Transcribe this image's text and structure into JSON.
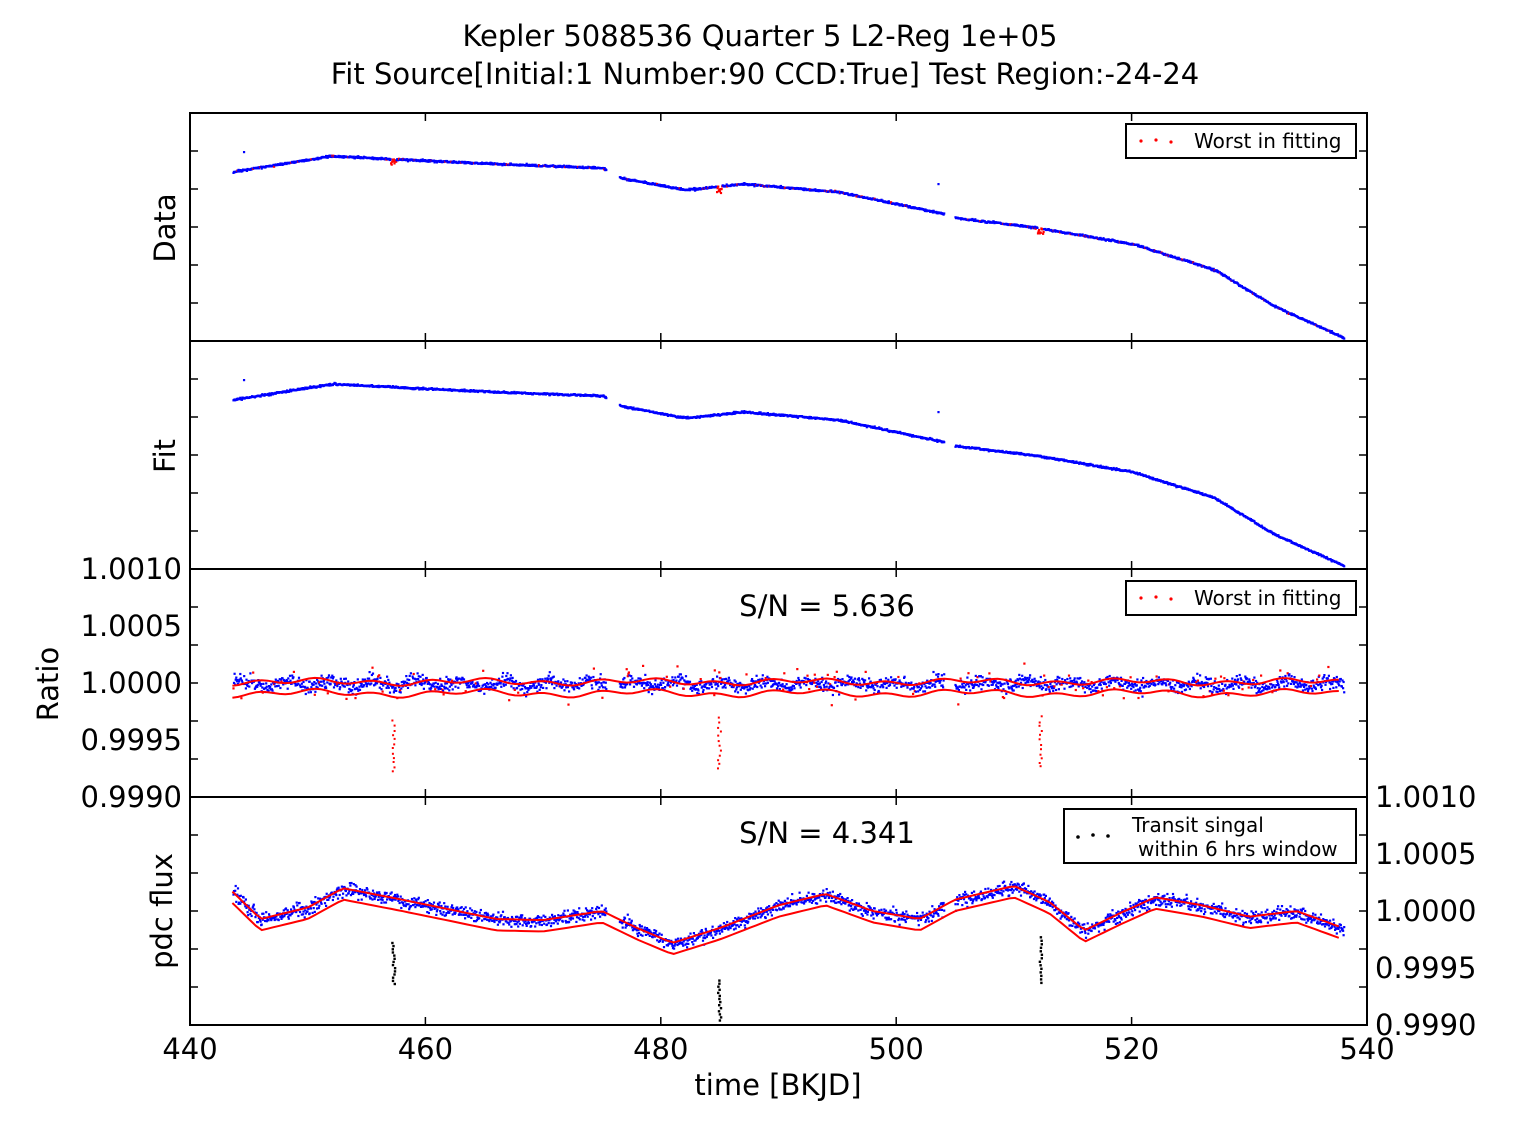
{
  "title": {
    "line1": "Kepler 5088536 Quarter 5 L2-Reg 1e+05",
    "line2": "Fit Source[Initial:1 Number:90 CCD:True] Test Region:-24-24"
  },
  "colors": {
    "data": "#0000ff",
    "worst": "#ff0000",
    "transit": "#000000",
    "band": "#ff0000",
    "frame": "#000000"
  },
  "chart_data": [
    {
      "type": "scatter",
      "panel": "data",
      "ylabel": "Data",
      "xlim": [
        440,
        540
      ],
      "legend": {
        "placement": "top-right",
        "entries": [
          "Worst in fitting"
        ]
      },
      "series": [
        {
          "name": "",
          "color": "#0000ff",
          "trend_x": [
            443.5,
            452,
            457,
            466,
            475,
            476.5,
            482,
            487,
            495,
            504,
            505,
            512,
            520,
            527,
            532,
            538
          ],
          "trend_y": [
            0.83,
            0.91,
            0.895,
            0.87,
            0.85,
            0.8,
            0.74,
            0.77,
            0.73,
            0.62,
            0.6,
            0.55,
            0.47,
            0.34,
            0.16,
            0.0
          ]
        },
        {
          "name": "Worst in fitting",
          "color": "#ff0000"
        }
      ]
    },
    {
      "type": "scatter",
      "panel": "fit",
      "ylabel": "Fit",
      "xlim": [
        440,
        540
      ],
      "series": [
        {
          "name": "",
          "color": "#0000ff",
          "trend_x": [
            443.5,
            452,
            457,
            466,
            475,
            476.5,
            482,
            487,
            495,
            504,
            505,
            512,
            520,
            527,
            532,
            538
          ],
          "trend_y": [
            0.83,
            0.91,
            0.895,
            0.87,
            0.85,
            0.8,
            0.74,
            0.77,
            0.73,
            0.62,
            0.6,
            0.55,
            0.47,
            0.34,
            0.16,
            0.0
          ]
        }
      ]
    },
    {
      "type": "scatter",
      "panel": "ratio",
      "ylabel": "Ratio",
      "ylim": [
        0.999,
        1.001
      ],
      "yticks": [
        "0.9990",
        "0.9995",
        "1.0000",
        "1.0005",
        "1.0010"
      ],
      "xlim": [
        440,
        540
      ],
      "annotation": "S/N = 5.636",
      "legend": {
        "placement": "top-right",
        "entries": [
          "Worst in fitting"
        ]
      },
      "transit_dips": [
        {
          "x": 457.2,
          "y_min": 0.99922
        },
        {
          "x": 484.9,
          "y_min": 0.99925
        },
        {
          "x": 512.2,
          "y_min": 0.99926
        }
      ],
      "series": [
        {
          "name": "",
          "color": "#0000ff"
        },
        {
          "name": "Worst in fitting",
          "color": "#ff0000"
        }
      ]
    },
    {
      "type": "scatter",
      "panel": "pdc",
      "ylabel": "pdc flux",
      "xlabel": "time [BKJD]",
      "ylim": [
        0.999,
        1.001
      ],
      "yticks": [
        "0.9990",
        "0.9995",
        "1.0000",
        "1.0005",
        "1.0010"
      ],
      "xlim": [
        440,
        540
      ],
      "xticks": [
        "440",
        "460",
        "480",
        "500",
        "520",
        "540"
      ],
      "annotation": "S/N = 4.341",
      "legend": {
        "placement": "top-right",
        "entries": [
          "Transit singal",
          "within 6 hrs window"
        ]
      },
      "trend_x": [
        443.5,
        446,
        450,
        453,
        458,
        466,
        470,
        475,
        478,
        481,
        485,
        490,
        494,
        498,
        502,
        505,
        510,
        513,
        516,
        519,
        522,
        526,
        530,
        534,
        538
      ],
      "trend_y": [
        1.00018,
        0.99993,
        1.00003,
        1.0002,
        1.0001,
        0.99993,
        0.99992,
        1.0,
        0.99985,
        0.99972,
        0.99985,
        1.00005,
        1.00015,
        1.0,
        0.99993,
        1.0001,
        1.00022,
        1.00008,
        0.99983,
        0.99998,
        1.00012,
        1.00005,
        0.99995,
        1.0,
        0.99985
      ],
      "transit_points": [
        {
          "x": 457.2,
          "y_min": 0.99937,
          "y_max": 0.99973
        },
        {
          "x": 484.9,
          "y_min": 0.99905,
          "y_max": 0.9994
        },
        {
          "x": 512.2,
          "y_min": 0.99938,
          "y_max": 0.99978
        }
      ],
      "series": [
        {
          "name": "",
          "color": "#0000ff"
        },
        {
          "name": "Transit singal within 6 hrs window",
          "color": "#000000"
        }
      ]
    }
  ]
}
